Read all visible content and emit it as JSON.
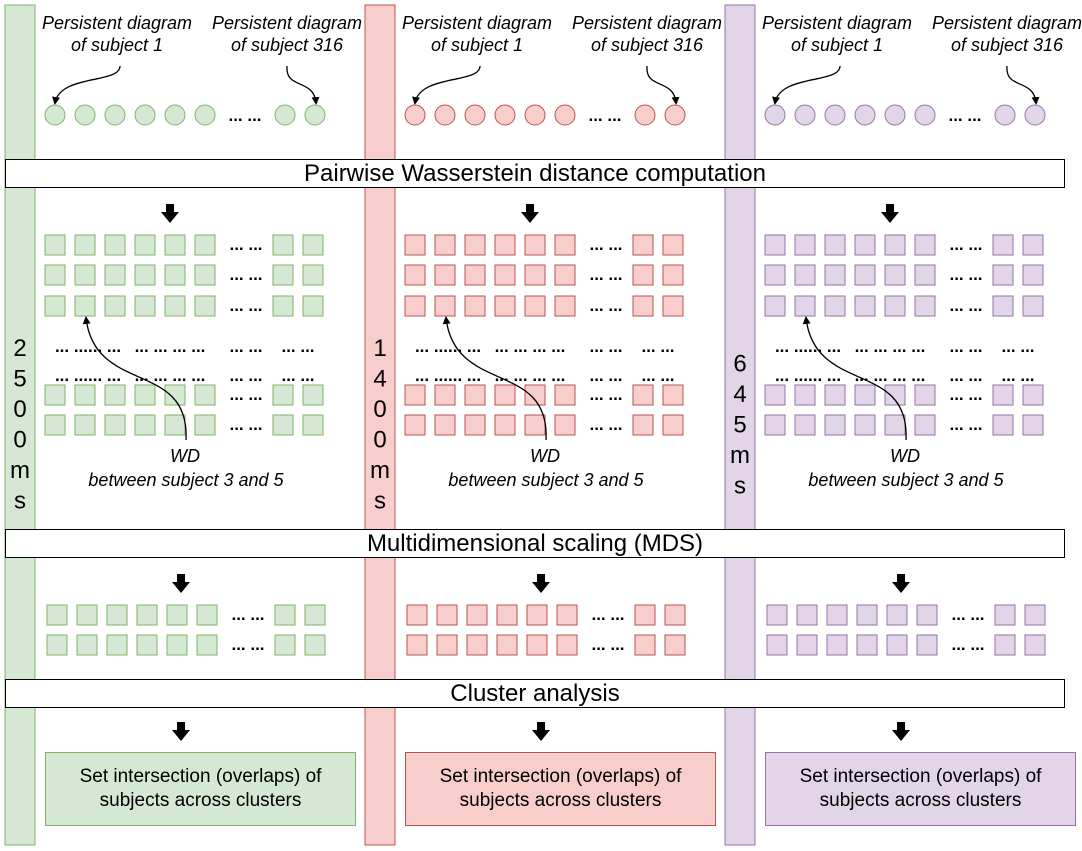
{
  "colors": {
    "green": {
      "fill": "#d5e8d4",
      "stroke": "#82b366"
    },
    "red": {
      "fill": "#f8cecc",
      "stroke": "#b85450"
    },
    "purple": {
      "fill": "#e1d5e7",
      "stroke": "#9673a6"
    }
  },
  "banners": {
    "pwd": "Pairwise Wasserstein distance computation",
    "mds": "Multidimensional scaling (MDS)",
    "cluster": "Cluster analysis"
  },
  "ellipsis_short": "... ...",
  "ellipsis_long": "... ...",
  "dots_row": [
    "... ...... ...",
    "... ... ... ...",
    "... ...",
    "... ..."
  ],
  "columns": [
    {
      "color": "green",
      "time_label": "2500ms",
      "pd_first": "Persistent diagram of subject 1",
      "pd_last": "Persistent diagram of subject 316",
      "wd_label": "WD",
      "wd_between": "between subject 3 and 5",
      "set_text": "Set intersection (overlaps) of subjects across clusters"
    },
    {
      "color": "red",
      "time_label": "1400ms",
      "pd_first": "Persistent diagram of subject 1",
      "pd_last": "Persistent diagram of subject 316",
      "wd_label": "WD",
      "wd_between": "between subject 3 and 5",
      "set_text": "Set intersection (overlaps) of subjects across clusters"
    },
    {
      "color": "purple",
      "time_label": "645ms",
      "pd_first": "Persistent diagram of subject 1",
      "pd_last": "Persistent diagram of subject 316",
      "wd_label": "WD",
      "wd_between": "between subject 3 and 5",
      "set_text": "Set intersection (overlaps) of subjects across clusters"
    }
  ]
}
